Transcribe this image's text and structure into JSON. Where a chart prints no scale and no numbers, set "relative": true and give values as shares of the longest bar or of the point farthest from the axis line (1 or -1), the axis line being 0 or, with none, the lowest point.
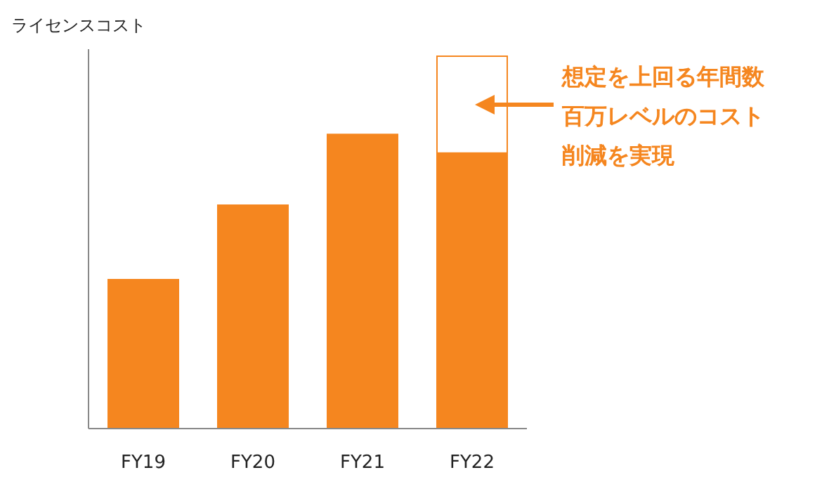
{
  "chart_data": {
    "type": "bar",
    "ylabel": "ライセンスコスト",
    "categories": [
      "FY19",
      "FY20",
      "FY21",
      "FY22"
    ],
    "relative": true,
    "stacked": true,
    "series": [
      {
        "color": "#f5861f",
        "values": [
          0.4,
          0.6,
          0.79,
          0.74
        ]
      },
      {
        "color": "#ffffff",
        "values": [
          null,
          null,
          null,
          0.26
        ]
      }
    ],
    "annotations": [
      "想定を上回る年間数百万レベルのコスト削減を実現"
    ]
  }
}
